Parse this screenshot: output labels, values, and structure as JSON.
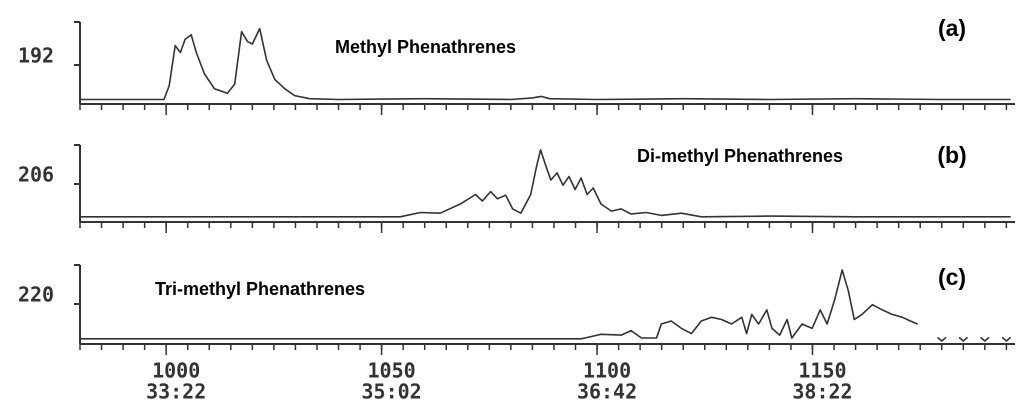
{
  "chart_data": [
    {
      "type": "line",
      "title": "Methyl Phenathrenes",
      "panel_label": "(a)",
      "ylabel": "192",
      "color": "#333333",
      "xlim": [
        980,
        1197
      ],
      "ylim": [
        0,
        100
      ],
      "xmajorticks": [
        1000,
        1050,
        1100,
        1150
      ],
      "xminorticks": [
        980,
        985,
        990,
        995,
        1000,
        1005,
        1010,
        1015,
        1020,
        1025,
        1030,
        1035,
        1040,
        1045,
        1050,
        1055,
        1060,
        1065,
        1070,
        1075,
        1080,
        1085,
        1090,
        1095,
        1100,
        1105,
        1110,
        1115,
        1120,
        1125,
        1130,
        1135,
        1140,
        1145,
        1150,
        1155,
        1160,
        1165,
        1170,
        1175,
        1180,
        1185,
        1190,
        1195
      ],
      "x": [
        980,
        999.5,
        1000.7,
        1002.1,
        1003.3,
        1004.4,
        1005.8,
        1007,
        1008.9,
        1011.2,
        1014.2,
        1015.9,
        1017.5,
        1018.9,
        1020,
        1021.7,
        1023.3,
        1025.2,
        1027.5,
        1029.8,
        1033.3,
        1040,
        1060,
        1080,
        1085,
        1087,
        1089,
        1100,
        1120,
        1140,
        1160,
        1180,
        1196
      ],
      "values": [
        2,
        2,
        20,
        72,
        63,
        80,
        86,
        63,
        35,
        16,
        10,
        22,
        90,
        77,
        74,
        94,
        53,
        28,
        16,
        7,
        3,
        2,
        3,
        2,
        4,
        6,
        3,
        2,
        3,
        2,
        3,
        2,
        2
      ]
    },
    {
      "type": "line",
      "title": "Di-methyl Phenathrenes",
      "panel_label": "(b)",
      "ylabel": "206",
      "color": "#333333",
      "xlim": [
        980,
        1197
      ],
      "ylim": [
        0,
        100
      ],
      "xmajorticks": [
        1000,
        1050,
        1100,
        1150
      ],
      "xminorticks": [
        980,
        985,
        990,
        995,
        1000,
        1005,
        1010,
        1015,
        1020,
        1025,
        1030,
        1035,
        1040,
        1045,
        1050,
        1055,
        1060,
        1065,
        1070,
        1075,
        1080,
        1085,
        1090,
        1095,
        1100,
        1105,
        1110,
        1115,
        1120,
        1125,
        1130,
        1135,
        1140,
        1145,
        1150,
        1155,
        1160,
        1165,
        1170,
        1175,
        1180,
        1185,
        1190,
        1195
      ],
      "x": [
        980,
        1050,
        1054.3,
        1059,
        1063.6,
        1068.3,
        1071.8,
        1073.4,
        1075.3,
        1076.9,
        1078.8,
        1080.4,
        1082.3,
        1084.6,
        1086,
        1086.9,
        1088.1,
        1089.3,
        1090.7,
        1092.1,
        1093.5,
        1094.9,
        1096.3,
        1097.7,
        1099.1,
        1100.9,
        1103.3,
        1105.6,
        1107.9,
        1111.4,
        1114.9,
        1119.6,
        1124.2,
        1140,
        1160,
        1180,
        1196
      ],
      "values": [
        3,
        3,
        3,
        9,
        8,
        21,
        34,
        25,
        38,
        28,
        33,
        14,
        8,
        34,
        74,
        96,
        74,
        54,
        64,
        47,
        59,
        41,
        57,
        34,
        43,
        21,
        11,
        14,
        7,
        9,
        5,
        8,
        3,
        4,
        3,
        3,
        3
      ]
    },
    {
      "type": "line",
      "title": "Tri-methyl Phenathrenes",
      "panel_label": "(c)",
      "ylabel": "220",
      "color": "#333333",
      "xlim": [
        980,
        1197
      ],
      "ylim": [
        0,
        100
      ],
      "xticks": [
        1000,
        1050,
        1100,
        1150
      ],
      "xtick_times": [
        "33:22",
        "35:02",
        "36:42",
        "38:22"
      ],
      "xminorticks": [
        980,
        985,
        990,
        995,
        1000,
        1005,
        1010,
        1015,
        1020,
        1025,
        1030,
        1035,
        1040,
        1045,
        1050,
        1055,
        1060,
        1065,
        1070,
        1075,
        1080,
        1085,
        1090,
        1095,
        1100,
        1105,
        1110,
        1115,
        1120,
        1125,
        1130,
        1135,
        1140,
        1145,
        1150,
        1155,
        1160,
        1165,
        1170,
        1175,
        1180,
        1185,
        1190,
        1195
      ],
      "x": [
        980,
        1096.3,
        1098.6,
        1100.9,
        1105.6,
        1107.9,
        1110.3,
        1113.8,
        1114.9,
        1117.2,
        1119.6,
        1121.9,
        1124.2,
        1126.6,
        1128.9,
        1131.2,
        1133.6,
        1134.7,
        1135.9,
        1137.5,
        1139.4,
        1140.6,
        1142.4,
        1144.1,
        1145.2,
        1147.6,
        1149.9,
        1151.8,
        1153.4,
        1155.1,
        1156.9,
        1158.3,
        1159.7,
        1161.5,
        1163.9,
        1166.2,
        1168.5,
        1170.9,
        1172.7,
        1174.4,
        1177,
        1179,
        1180,
        1181,
        1182.5,
        1184,
        1185,
        1186,
        1187.5,
        1189,
        1190,
        1191,
        1192.5,
        1194,
        1195,
        1196
      ],
      "values": [
        3,
        3,
        6,
        9,
        8,
        14,
        4,
        4,
        23,
        27,
        17,
        10,
        27,
        32,
        29,
        23,
        32,
        10,
        36,
        23,
        42,
        17,
        8,
        29,
        4,
        23,
        17,
        42,
        23,
        55,
        96,
        68,
        29,
        36,
        49,
        42,
        36,
        32,
        27,
        23,
        null,
        5,
        0,
        5,
        null,
        5,
        0,
        5,
        null,
        5,
        0,
        5,
        null,
        5,
        0,
        5
      ]
    }
  ]
}
